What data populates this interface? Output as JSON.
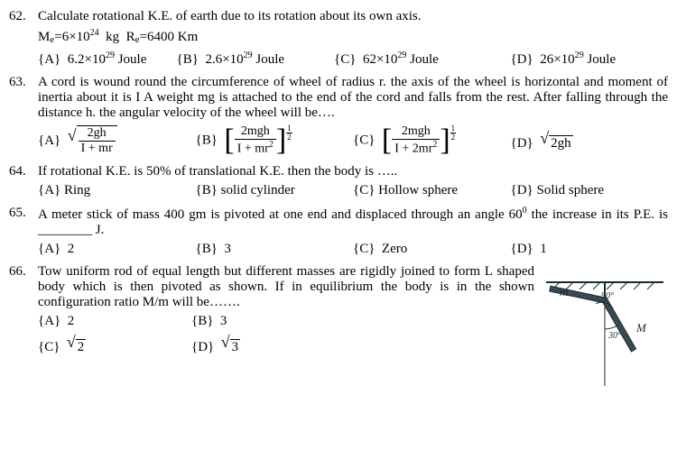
{
  "q62": {
    "num": "62.",
    "text": "Calculate rotational K.E. of earth due to its rotation about its own axis.",
    "data_html": "M<sub>e</sub>=6×10<sup>24</sup>&nbsp;&nbsp;kg&nbsp;&nbsp;R<sub>e</sub>=6400&nbsp;Km",
    "A_html": "6.2×10<sup>29</sup>&nbsp;Joule",
    "B_html": "2.6×10<sup>29</sup>&nbsp;Joule",
    "C_html": "62×10<sup>29</sup>&nbsp;Joule",
    "D_html": "26×10<sup>29</sup>&nbsp;Joule"
  },
  "q63": {
    "num": "63.",
    "text": "A cord is wound round the circumference of wheel of radius r. the axis of the wheel is horizontal and moment of inertia about it is I A weight mg is attached to the end of the cord and falls from the rest. After falling through the distance h.   the angular velocity of the wheel will be….",
    "A": {
      "num": "2gh",
      "den": "I + mr"
    },
    "B": {
      "num": "2mgh",
      "den_html": "I + mr<sup>2</sup>"
    },
    "C": {
      "num": "2mgh",
      "den_html": "I + 2mr<sup>2</sup>"
    },
    "D_arg": "2gh"
  },
  "q64": {
    "num": "64.",
    "text": "If rotational K.E. is 50% of translational K.E. then the body is …..",
    "A": "Ring",
    "B": "solid cylinder",
    "C": "Hollow sphere",
    "D": "Solid sphere"
  },
  "q65": {
    "num": "65.",
    "text_html": "A meter stick of mass 400 gm is pivoted at one end and displaced through an angle 60<sup>0</sup> the increase in its P.E. is ________ J.",
    "A": "2",
    "B": "3",
    "C": "Zero",
    "D": "1"
  },
  "q66": {
    "num": "66.",
    "text": "Tow uniform rod of equal length but different masses are rigidly joined to form L shaped body which is then pivoted as shown. If in equilibrium the body is in the shown configuration ratio M/m will be…….",
    "A": "2",
    "B": "3",
    "C_arg": "2",
    "D_arg": "3",
    "fig": {
      "angle1": "90°",
      "angle2": "30°",
      "label_m": "m",
      "label_M": "M",
      "rod_color": "#3a4a52",
      "line_color": "#1a2a32"
    }
  },
  "labels": {
    "A": "{A}",
    "B": "{B}",
    "C": "{C}",
    "D": "{D}"
  }
}
